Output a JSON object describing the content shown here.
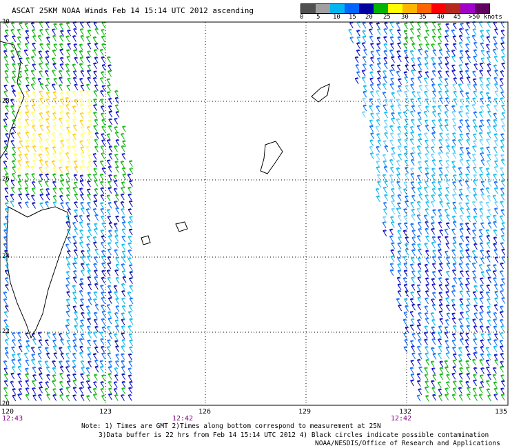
{
  "header": {
    "title": "ASCAT 25KM NOAA Winds Feb 14 15:14 UTC 2012 ascending"
  },
  "colorbar": {
    "colors": [
      "#505050",
      "#a0a0a0",
      "#00b4f0",
      "#0064ff",
      "#0000a0",
      "#00b400",
      "#ffff00",
      "#ffb400",
      "#ff6400",
      "#ff0000",
      "#b4281e",
      "#a000c8",
      "#600060"
    ],
    "labels": [
      "0",
      "5",
      "10",
      "15",
      "20",
      "25",
      "30",
      "35",
      "40",
      "45",
      ">50 knots"
    ]
  },
  "axes": {
    "lat_labels": [
      "30",
      "28",
      "26",
      "24",
      "22",
      "20"
    ],
    "lon_labels": [
      "120",
      "123",
      "126",
      "129",
      "132",
      "135"
    ],
    "time_labels": [
      "12:43",
      "12:42",
      "12:42"
    ]
  },
  "notes": {
    "line1": "Note: 1) Times are GMT 2)Times along bottom correspond to measurement at 25N",
    "line2": "3)Data buffer is 22 hrs from Feb 14 15:14 UTC 2012 4) Black circles indicate possible contamination",
    "credit": "NOAA/NESDIS/Office of Research and Applications"
  }
}
